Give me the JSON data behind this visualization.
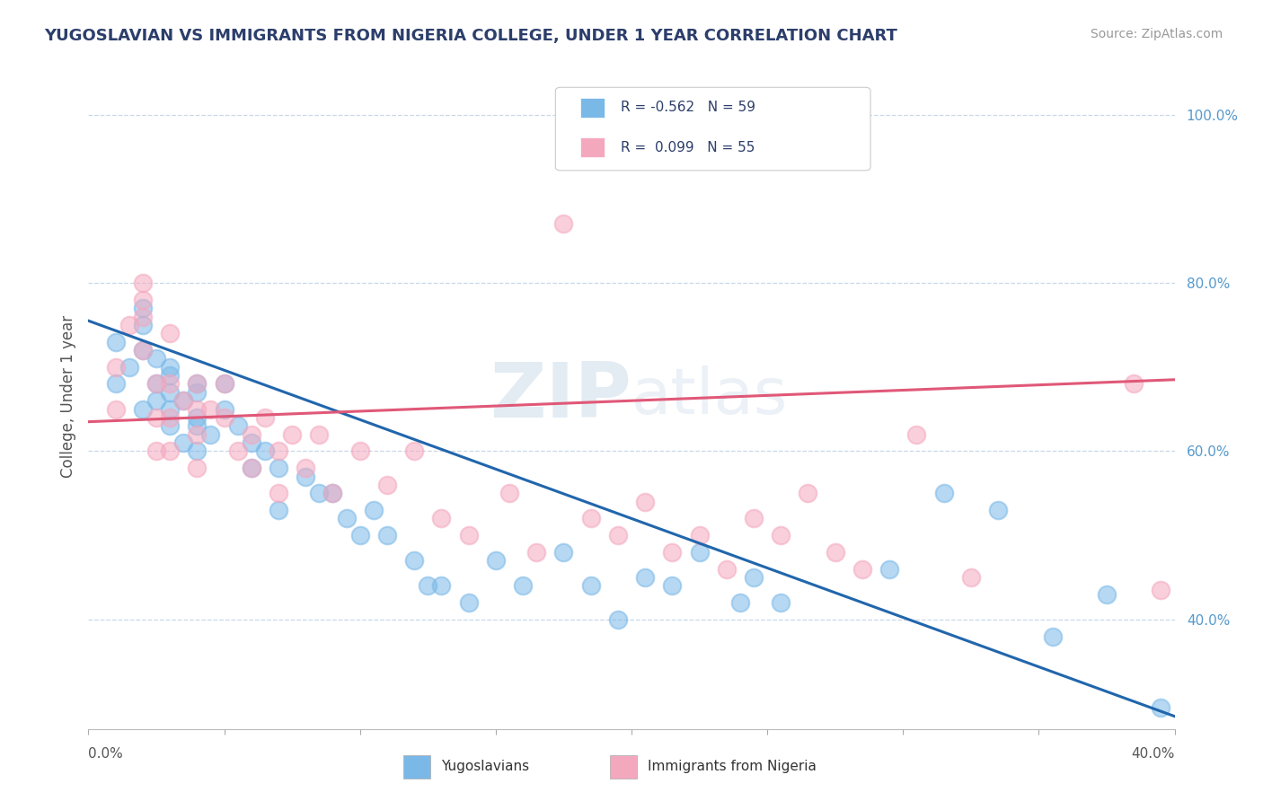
{
  "title": "YUGOSLAVIAN VS IMMIGRANTS FROM NIGERIA COLLEGE, UNDER 1 YEAR CORRELATION CHART",
  "source": "Source: ZipAtlas.com",
  "ylabel": "College, Under 1 year",
  "legend_r1": "R = -0.562   N = 59",
  "legend_r2": "R =  0.099   N = 55",
  "legend_label_1": "Yugoslavians",
  "legend_label_2": "Immigrants from Nigeria",
  "blue_color": "#7ab8e8",
  "pink_color": "#f4a8be",
  "blue_line_color": "#2166ac",
  "pink_line_color": "#e05878",
  "title_color": "#2c3e6b",
  "source_color": "#999999",
  "background_color": "#ffffff",
  "grid_color": "#c8d8e8",
  "right_tick_color": "#5599cc",
  "xmin": 0.0,
  "xmax": 0.4,
  "ymin": 0.27,
  "ymax": 1.06,
  "blue_scatter_x": [
    0.01,
    0.01,
    0.015,
    0.02,
    0.02,
    0.02,
    0.02,
    0.025,
    0.025,
    0.025,
    0.03,
    0.03,
    0.03,
    0.03,
    0.03,
    0.035,
    0.035,
    0.04,
    0.04,
    0.04,
    0.04,
    0.04,
    0.045,
    0.05,
    0.05,
    0.055,
    0.06,
    0.06,
    0.065,
    0.07,
    0.07,
    0.08,
    0.085,
    0.09,
    0.095,
    0.1,
    0.105,
    0.11,
    0.12,
    0.125,
    0.13,
    0.14,
    0.15,
    0.16,
    0.175,
    0.185,
    0.195,
    0.205,
    0.215,
    0.225,
    0.24,
    0.245,
    0.255,
    0.295,
    0.315,
    0.335,
    0.355,
    0.375,
    0.395
  ],
  "blue_scatter_y": [
    0.68,
    0.73,
    0.7,
    0.72,
    0.75,
    0.77,
    0.65,
    0.68,
    0.66,
    0.71,
    0.7,
    0.65,
    0.67,
    0.69,
    0.63,
    0.66,
    0.61,
    0.64,
    0.67,
    0.6,
    0.63,
    0.68,
    0.62,
    0.65,
    0.68,
    0.63,
    0.61,
    0.58,
    0.6,
    0.58,
    0.53,
    0.57,
    0.55,
    0.55,
    0.52,
    0.5,
    0.53,
    0.5,
    0.47,
    0.44,
    0.44,
    0.42,
    0.47,
    0.44,
    0.48,
    0.44,
    0.4,
    0.45,
    0.44,
    0.48,
    0.42,
    0.45,
    0.42,
    0.46,
    0.55,
    0.53,
    0.38,
    0.43,
    0.295
  ],
  "pink_scatter_x": [
    0.01,
    0.01,
    0.015,
    0.02,
    0.02,
    0.02,
    0.02,
    0.025,
    0.025,
    0.025,
    0.03,
    0.03,
    0.03,
    0.03,
    0.035,
    0.04,
    0.04,
    0.04,
    0.04,
    0.045,
    0.05,
    0.05,
    0.055,
    0.06,
    0.06,
    0.065,
    0.07,
    0.07,
    0.075,
    0.08,
    0.085,
    0.09,
    0.1,
    0.11,
    0.12,
    0.13,
    0.14,
    0.155,
    0.165,
    0.175,
    0.185,
    0.195,
    0.205,
    0.215,
    0.225,
    0.235,
    0.245,
    0.255,
    0.265,
    0.275,
    0.285,
    0.305,
    0.325,
    0.385,
    0.395
  ],
  "pink_scatter_y": [
    0.7,
    0.65,
    0.75,
    0.78,
    0.8,
    0.72,
    0.76,
    0.68,
    0.64,
    0.6,
    0.74,
    0.68,
    0.64,
    0.6,
    0.66,
    0.65,
    0.68,
    0.62,
    0.58,
    0.65,
    0.64,
    0.68,
    0.6,
    0.62,
    0.58,
    0.64,
    0.6,
    0.55,
    0.62,
    0.58,
    0.62,
    0.55,
    0.6,
    0.56,
    0.6,
    0.52,
    0.5,
    0.55,
    0.48,
    0.87,
    0.52,
    0.5,
    0.54,
    0.48,
    0.5,
    0.46,
    0.52,
    0.5,
    0.55,
    0.48,
    0.46,
    0.62,
    0.45,
    0.68,
    0.435
  ],
  "blue_trend_x": [
    0.0,
    0.4
  ],
  "blue_trend_y": [
    0.755,
    0.285
  ],
  "pink_trend_x": [
    0.0,
    0.4
  ],
  "pink_trend_y": [
    0.635,
    0.685
  ]
}
